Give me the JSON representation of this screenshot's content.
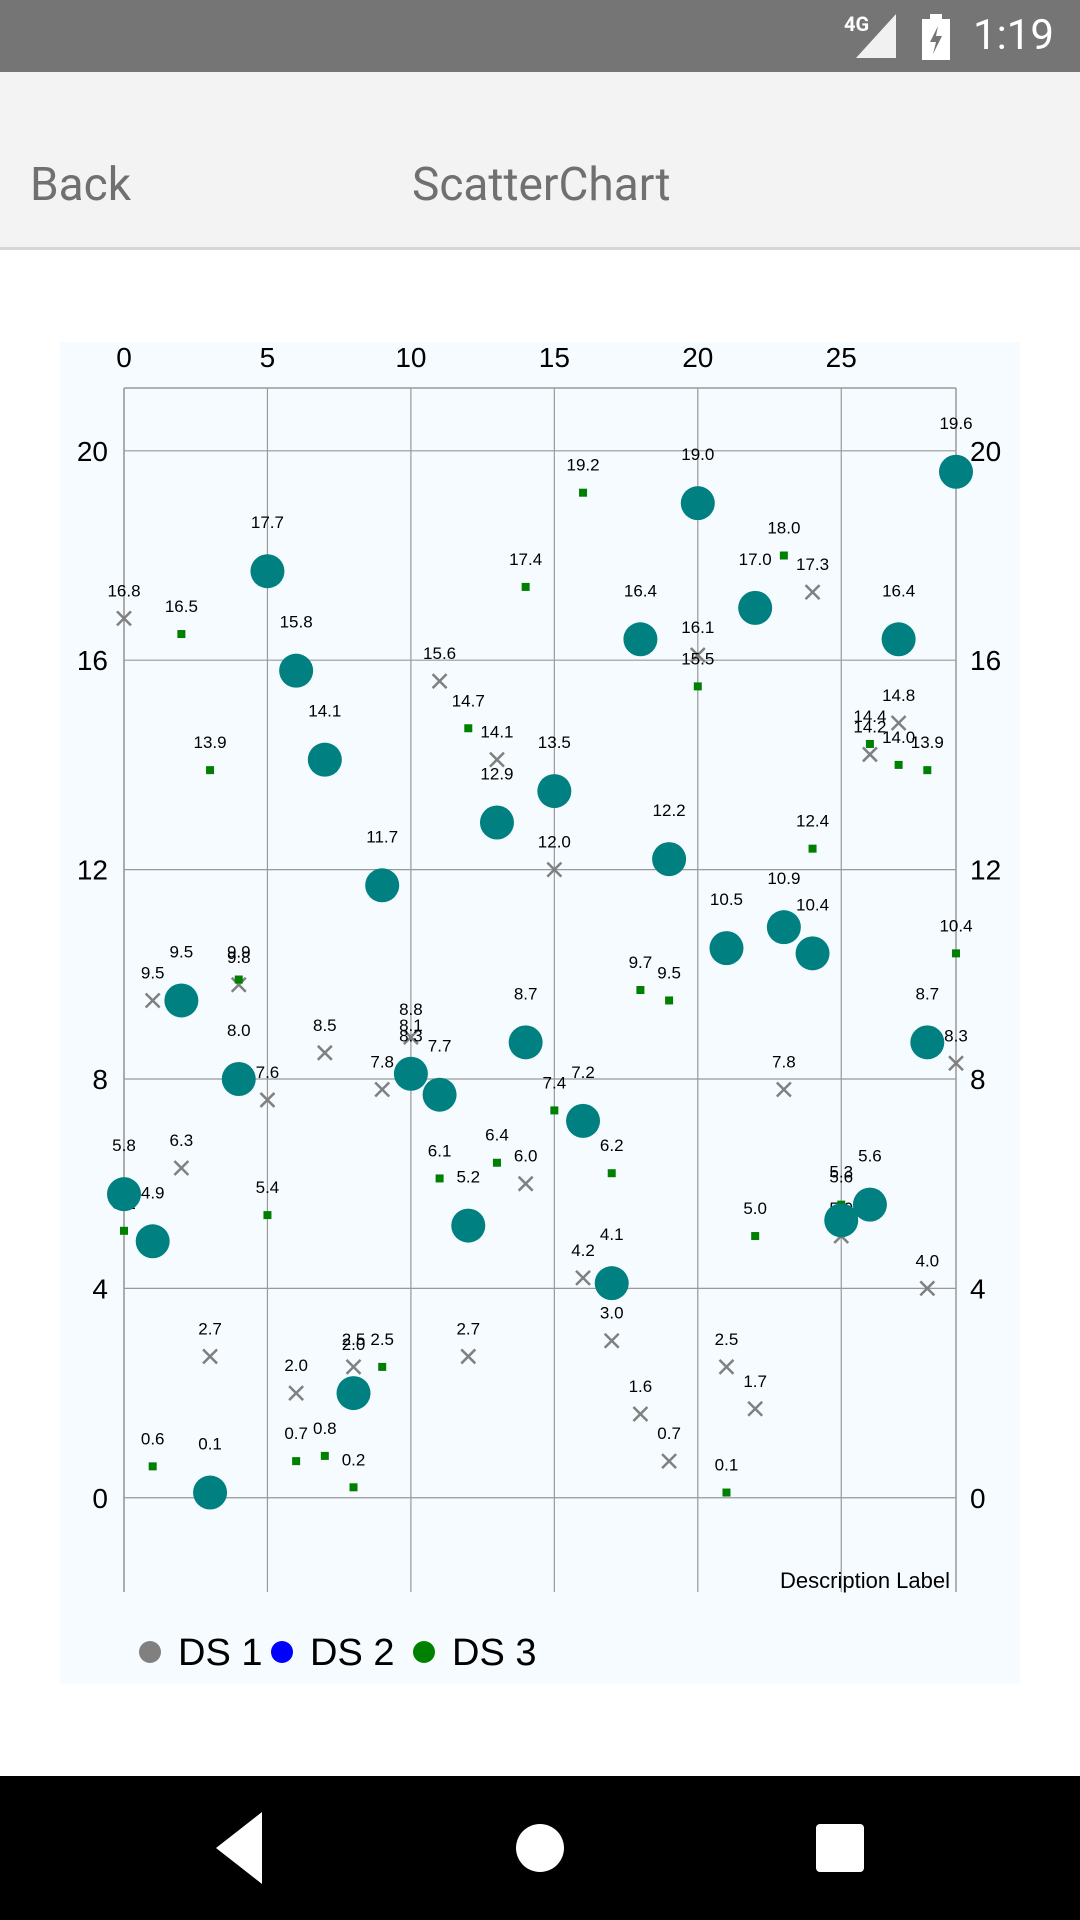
{
  "status_bar": {
    "time": "1:19",
    "network": "4G"
  },
  "app_bar": {
    "back_label": "Back",
    "title": "ScatterChart"
  },
  "colors": {
    "ds1": "#808080",
    "ds2": "#008080",
    "ds3": "#008000",
    "chart_bg": "#f5fbfe",
    "legend_ds2": "#0000ff"
  },
  "chart_data": {
    "type": "scatter",
    "description": "Description Label",
    "x_axis": {
      "position": "top",
      "min": 0,
      "max": 29,
      "ticks": [
        "0",
        "5",
        "10",
        "15",
        "20",
        "25"
      ]
    },
    "y_axis_left": {
      "min": -1.8,
      "max": 21.2,
      "ticks": [
        "0",
        "4",
        "8",
        "12",
        "16",
        "20"
      ]
    },
    "y_axis_right": {
      "min": -1.8,
      "max": 21.2,
      "ticks": [
        "0",
        "4",
        "8",
        "12",
        "16",
        "20"
      ]
    },
    "grid": true,
    "legend": {
      "position": "bottom-left"
    },
    "series": [
      {
        "name": "DS 1",
        "legend_color": "#808080",
        "marker": "x",
        "points": [
          {
            "x": 0,
            "y": 16.8,
            "label": "16.8"
          },
          {
            "x": 1,
            "y": 9.5,
            "label": "9.5"
          },
          {
            "x": 2,
            "y": 6.3,
            "label": "6.3"
          },
          {
            "x": 3,
            "y": 2.7,
            "label": "2.7"
          },
          {
            "x": 4,
            "y": 9.8,
            "label": "9.8"
          },
          {
            "x": 5,
            "y": 7.6,
            "label": "7.6"
          },
          {
            "x": 6,
            "y": 2.0,
            "label": "2.0"
          },
          {
            "x": 7,
            "y": 8.5,
            "label": "8.5"
          },
          {
            "x": 8,
            "y": 2.5,
            "label": "2.5"
          },
          {
            "x": 9,
            "y": 7.8,
            "label": "7.8"
          },
          {
            "x": 10,
            "y": 8.8,
            "label": "8.8"
          },
          {
            "x": 11,
            "y": 15.6,
            "label": "15.6"
          },
          {
            "x": 12,
            "y": 2.7,
            "label": "2.7"
          },
          {
            "x": 13,
            "y": 14.1,
            "label": "14.1"
          },
          {
            "x": 14,
            "y": 6.0,
            "label": "6.0"
          },
          {
            "x": 15,
            "y": 12.0,
            "label": "12.0"
          },
          {
            "x": 16,
            "y": 4.2,
            "label": "4.2"
          },
          {
            "x": 17,
            "y": 3.0,
            "label": "3.0"
          },
          {
            "x": 18,
            "y": 1.6,
            "label": "1.6"
          },
          {
            "x": 19,
            "y": 0.7,
            "label": "0.7"
          },
          {
            "x": 20,
            "y": 16.1,
            "label": "16.1"
          },
          {
            "x": 21,
            "y": 2.5,
            "label": "2.5"
          },
          {
            "x": 22,
            "y": 1.7,
            "label": "1.7"
          },
          {
            "x": 23,
            "y": 7.8,
            "label": "7.8"
          },
          {
            "x": 24,
            "y": 17.3,
            "label": "17.3"
          },
          {
            "x": 25,
            "y": 5.0,
            "label": "5.0"
          },
          {
            "x": 26,
            "y": 14.2,
            "label": "14.2"
          },
          {
            "x": 27,
            "y": 14.8,
            "label": "14.8"
          },
          {
            "x": 28,
            "y": 4.0,
            "label": "4.0"
          },
          {
            "x": 29,
            "y": 8.3,
            "label": "8.3"
          }
        ]
      },
      {
        "name": "DS 2",
        "legend_color": "#0000ff",
        "marker": "circle",
        "points": [
          {
            "x": 0,
            "y": 5.8,
            "label": "5.8"
          },
          {
            "x": 1,
            "y": 4.9,
            "label": "4.9"
          },
          {
            "x": 2,
            "y": 9.5,
            "label": "9.5"
          },
          {
            "x": 3,
            "y": 0.1,
            "label": "0.1"
          },
          {
            "x": 4,
            "y": 8.0,
            "label": "8.0"
          },
          {
            "x": 5,
            "y": 17.7,
            "label": "17.7"
          },
          {
            "x": 6,
            "y": 15.8,
            "label": "15.8"
          },
          {
            "x": 7,
            "y": 14.1,
            "label": "14.1"
          },
          {
            "x": 8,
            "y": 2.0,
            "label": "2.0"
          },
          {
            "x": 9,
            "y": 11.7,
            "label": "11.7"
          },
          {
            "x": 10,
            "y": 8.1,
            "label": "8.1"
          },
          {
            "x": 11,
            "y": 7.7,
            "label": "7.7"
          },
          {
            "x": 12,
            "y": 5.2,
            "label": "5.2"
          },
          {
            "x": 13,
            "y": 12.9,
            "label": "12.9"
          },
          {
            "x": 14,
            "y": 8.7,
            "label": "8.7"
          },
          {
            "x": 15,
            "y": 13.5,
            "label": "13.5"
          },
          {
            "x": 16,
            "y": 7.2,
            "label": "7.2"
          },
          {
            "x": 17,
            "y": 4.1,
            "label": "4.1"
          },
          {
            "x": 18,
            "y": 16.4,
            "label": "16.4"
          },
          {
            "x": 19,
            "y": 12.2,
            "label": "12.2"
          },
          {
            "x": 20,
            "y": 19.0,
            "label": "19.0"
          },
          {
            "x": 21,
            "y": 10.5,
            "label": "10.5"
          },
          {
            "x": 22,
            "y": 17.0,
            "label": "17.0"
          },
          {
            "x": 23,
            "y": 10.9,
            "label": "10.9"
          },
          {
            "x": 24,
            "y": 10.4,
            "label": "10.4"
          },
          {
            "x": 25,
            "y": 5.3,
            "label": "5.3"
          },
          {
            "x": 26,
            "y": 5.6,
            "label": "5.6"
          },
          {
            "x": 27,
            "y": 16.4,
            "label": "16.4"
          },
          {
            "x": 28,
            "y": 8.7,
            "label": "8.7"
          },
          {
            "x": 29,
            "y": 19.6,
            "label": "19.6"
          }
        ]
      },
      {
        "name": "DS 3",
        "legend_color": "#008000",
        "marker": "square",
        "points": [
          {
            "x": 0,
            "y": 5.1,
            "label": "5.1"
          },
          {
            "x": 1,
            "y": 0.6,
            "label": "0.6"
          },
          {
            "x": 2,
            "y": 16.5,
            "label": "16.5"
          },
          {
            "x": 3,
            "y": 13.9,
            "label": "13.9"
          },
          {
            "x": 4,
            "y": 9.9,
            "label": "9.9"
          },
          {
            "x": 5,
            "y": 5.4,
            "label": "5.4"
          },
          {
            "x": 6,
            "y": 0.7,
            "label": "0.7"
          },
          {
            "x": 7,
            "y": 0.8,
            "label": "0.8"
          },
          {
            "x": 8,
            "y": 0.2,
            "label": "0.2"
          },
          {
            "x": 9,
            "y": 2.5,
            "label": "2.5"
          },
          {
            "x": 10,
            "y": 8.3,
            "label": "8.3"
          },
          {
            "x": 11,
            "y": 6.1,
            "label": "6.1"
          },
          {
            "x": 12,
            "y": 14.7,
            "label": "14.7"
          },
          {
            "x": 13,
            "y": 6.4,
            "label": "6.4"
          },
          {
            "x": 14,
            "y": 17.4,
            "label": "17.4"
          },
          {
            "x": 15,
            "y": 7.4,
            "label": "7.4"
          },
          {
            "x": 16,
            "y": 19.2,
            "label": "19.2"
          },
          {
            "x": 17,
            "y": 6.2,
            "label": "6.2"
          },
          {
            "x": 18,
            "y": 9.7,
            "label": "9.7"
          },
          {
            "x": 19,
            "y": 9.5,
            "label": "9.5"
          },
          {
            "x": 20,
            "y": 15.5,
            "label": "15.5"
          },
          {
            "x": 21,
            "y": 0.1,
            "label": "0.1"
          },
          {
            "x": 22,
            "y": 5.0,
            "label": "5.0"
          },
          {
            "x": 23,
            "y": 18.0,
            "label": "18.0"
          },
          {
            "x": 24,
            "y": 12.4,
            "label": "12.4"
          },
          {
            "x": 25,
            "y": 5.6,
            "label": "5.6"
          },
          {
            "x": 26,
            "y": 14.4,
            "label": "14.4"
          },
          {
            "x": 27,
            "y": 14.0,
            "label": "14.0"
          },
          {
            "x": 28,
            "y": 13.9,
            "label": "13.9"
          },
          {
            "x": 29,
            "y": 10.4,
            "label": "10.4"
          }
        ]
      }
    ]
  }
}
